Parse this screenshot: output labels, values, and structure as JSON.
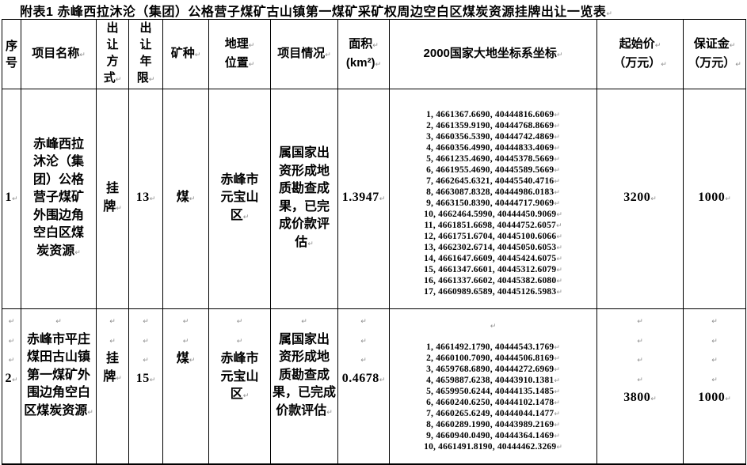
{
  "document": {
    "title": "附表1 赤峰西拉沐沦（集团）公格营子煤矿古山镇第一煤矿采矿权周边空白区煤炭资源挂牌出让一览表↵"
  },
  "table": {
    "header": {
      "seq": "序\n号",
      "name": "项目名称↵",
      "method": "出\n让\n方\n式↵",
      "years": "出\n让\n年\n限↵",
      "mineral": "矿种↵",
      "location": "地理↵\n位置↵",
      "situation": "项目情况↵",
      "area": "面积↵\n(km²)↵",
      "coords": "2000国家大地坐标系坐标↵",
      "start_price": "起始价↵\n（万元）↵",
      "deposit": "保证金↵\n（万元）↵"
    },
    "rows": [
      {
        "seq": "1↵",
        "name": "赤峰西拉\n沐沦（集\n团）公格\n营子煤矿\n外围边角\n空白区煤\n炭资源↵",
        "method": "挂\n牌↵",
        "years": "13↵",
        "mineral": "煤↵",
        "location": "赤峰市\n元宝山\n区↵",
        "situation": "属国家出\n资形成地\n质勘查成\n果，已完\n成价款评\n估↵",
        "area": "1.3947↵",
        "coords_lead": "",
        "coords": [
          "1, 4661367.6690, 40444816.6069↵",
          "2, 4661359.9190, 40444768.8669↵",
          "3, 4660356.5390, 40444742.4869↵",
          "4, 4660356.4990, 40444833.4069↵",
          "5, 4661235.4690, 40445378.5669↵",
          "6, 4661955.4690, 40445589.5669↵",
          "7, 4662645.6321, 40445540.4716↵",
          "8, 4663087.8328, 40444986.0183↵",
          "9, 4663150.8390, 40444717.9069↵",
          "10, 4662464.5990, 40444450.9069↵",
          "11, 4661851.6698, 40444752.6057↵",
          "12, 4661751.6704, 40445100.6066↵",
          "13, 4662302.6714, 40445050.6053↵",
          "14, 4661647.6609, 40445424.6075↵",
          "15, 4661347.6601, 40445312.6079↵",
          "16, 4661337.6602, 40445382.6080↵",
          "17, 4660989.6589, 40445126.5983↵"
        ],
        "start_price": "3200↵",
        "deposit": "1000↵"
      },
      {
        "seq": "↵\n↵\n↵\n2↵",
        "name": "↵\n赤峰市平庄\n煤田古山镇\n第一煤矿外\n围边角空白\n区煤炭资源↵",
        "method": "↵\n↵\n挂\n牌↵",
        "years": "↵\n↵\n↵\n15↵",
        "mineral": "↵\n↵\n煤↵",
        "location": "↵\n↵\n赤峰市\n元宝山\n区↵",
        "situation": "↵\n属国家出\n资形成地\n质勘查成\n果，已完成\n价款评估↵",
        "area": "↵\n↵\n↵\n0.4678↵",
        "coords_lead": "↵",
        "coords": [
          "1, 4661492.1790, 40444543.1769↵",
          "2, 4660100.7090, 40444506.8169↵",
          "3, 4659768.6890, 40444272.6969↵",
          "4, 4659887.6238, 40443910.1381↵",
          "5, 4659950.6244, 40444135.1485↵",
          "6, 4660240.6250, 40444102.1478↵",
          "7, 4660265.6249, 40444044.1477↵",
          "8, 4660289.1990, 40443989.2169↵",
          "9, 4660940.0490, 40444364.1469↵",
          "10, 4661491.8190, 40444462.3269↵"
        ],
        "start_price": "↵\n↵\n↵\n↵\n3800↵",
        "deposit": "↵\n↵\n↵\n↵\n1000↵"
      }
    ]
  }
}
